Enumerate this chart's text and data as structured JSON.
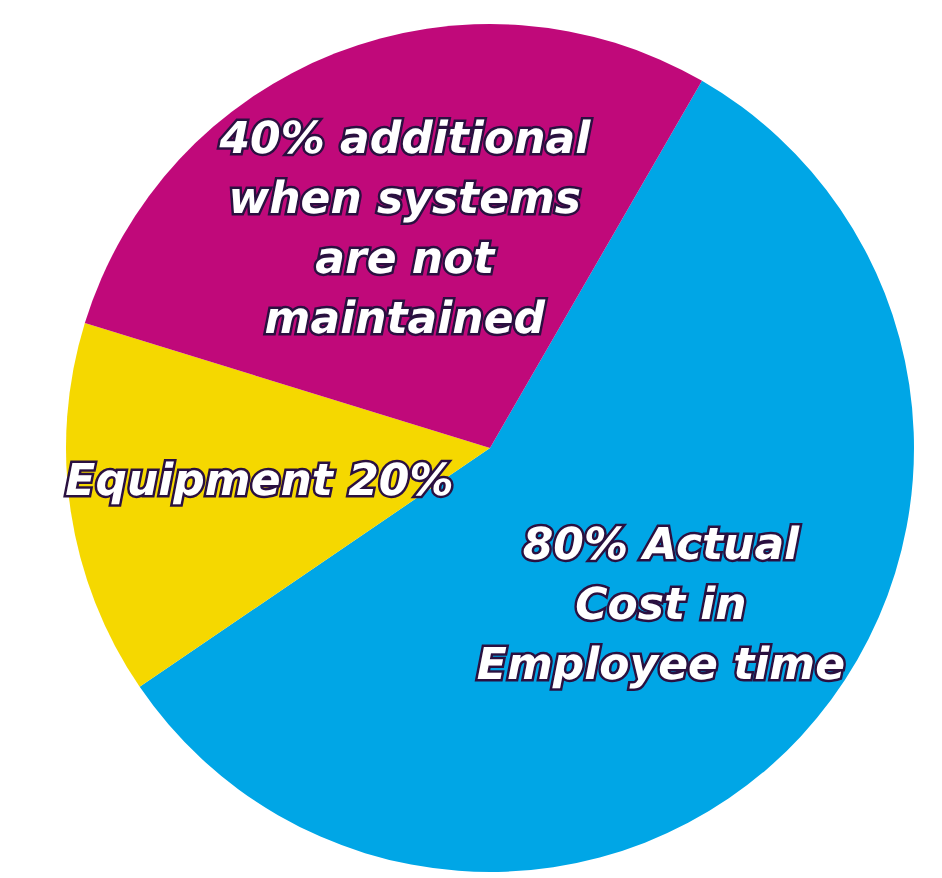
{
  "chart_data": {
    "type": "pie",
    "categories": [
      "80% Actual Cost in Employee time",
      "Equipment 20%",
      "40% additional when systems are not maintained"
    ],
    "values": [
      80,
      20,
      40
    ],
    "colors": [
      "#00a6e6",
      "#f5d800",
      "#c0097a"
    ]
  }
}
